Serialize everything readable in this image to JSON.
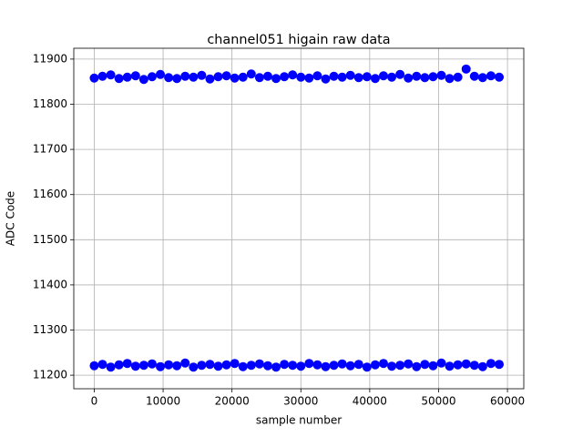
{
  "chart_data": {
    "type": "scatter",
    "title": "channel051 higain raw data",
    "x_label": "sample number",
    "y_label": "ADC Code",
    "xlim": [
      -2970,
      62370
    ],
    "ylim": [
      11170,
      11924
    ],
    "xticks": [
      0,
      10000,
      20000,
      30000,
      40000,
      50000,
      60000
    ],
    "yticks": [
      11200,
      11300,
      11400,
      11500,
      11600,
      11700,
      11800,
      11900
    ],
    "grid": true,
    "series": [
      {
        "color": "#0000ff",
        "x": [
          0,
          1200,
          2400,
          3600,
          4800,
          6000,
          7200,
          8400,
          9600,
          10800,
          12000,
          13200,
          14400,
          15600,
          16800,
          18000,
          19200,
          20400,
          21600,
          22800,
          24000,
          25200,
          26400,
          27600,
          28800,
          30000,
          31200,
          32400,
          33600,
          34800,
          36000,
          37200,
          38400,
          39600,
          40800,
          42000,
          43200,
          44400,
          45600,
          46800,
          48000,
          49200,
          50400,
          51600,
          52800,
          54000,
          55200,
          56400,
          57600,
          58800
        ],
        "values": [
          11858,
          11862,
          11865,
          11857,
          11860,
          11863,
          11855,
          11861,
          11866,
          11859,
          11857,
          11862,
          11860,
          11864,
          11856,
          11861,
          11863,
          11858,
          11860,
          11867,
          11859,
          11862,
          11857,
          11861,
          11865,
          11860,
          11858,
          11863,
          11856,
          11862,
          11860,
          11864,
          11859,
          11861,
          11857,
          11863,
          11860,
          11866,
          11858,
          11862,
          11859,
          11861,
          11864,
          11857,
          11860,
          11878,
          11862,
          11859,
          11863,
          11860
        ]
      },
      {
        "color": "#0000ff",
        "x": [
          0,
          1200,
          2400,
          3600,
          4800,
          6000,
          7200,
          8400,
          9600,
          10800,
          12000,
          13200,
          14400,
          15600,
          16800,
          18000,
          19200,
          20400,
          21600,
          22800,
          24000,
          25200,
          26400,
          27600,
          28800,
          30000,
          31200,
          32400,
          33600,
          34800,
          36000,
          37200,
          38400,
          39600,
          40800,
          42000,
          43200,
          44400,
          45600,
          46800,
          48000,
          49200,
          50400,
          51600,
          52800,
          54000,
          55200,
          56400,
          57600,
          58800
        ],
        "values": [
          11221,
          11224,
          11218,
          11223,
          11226,
          11220,
          11222,
          11225,
          11219,
          11223,
          11221,
          11227,
          11218,
          11222,
          11224,
          11220,
          11223,
          11226,
          11219,
          11222,
          11225,
          11221,
          11218,
          11224,
          11222,
          11220,
          11226,
          11223,
          11219,
          11222,
          11225,
          11221,
          11224,
          11218,
          11223,
          11226,
          11220,
          11222,
          11225,
          11219,
          11224,
          11221,
          11227,
          11220,
          11223,
          11225,
          11222,
          11219,
          11226,
          11224
        ]
      }
    ]
  }
}
